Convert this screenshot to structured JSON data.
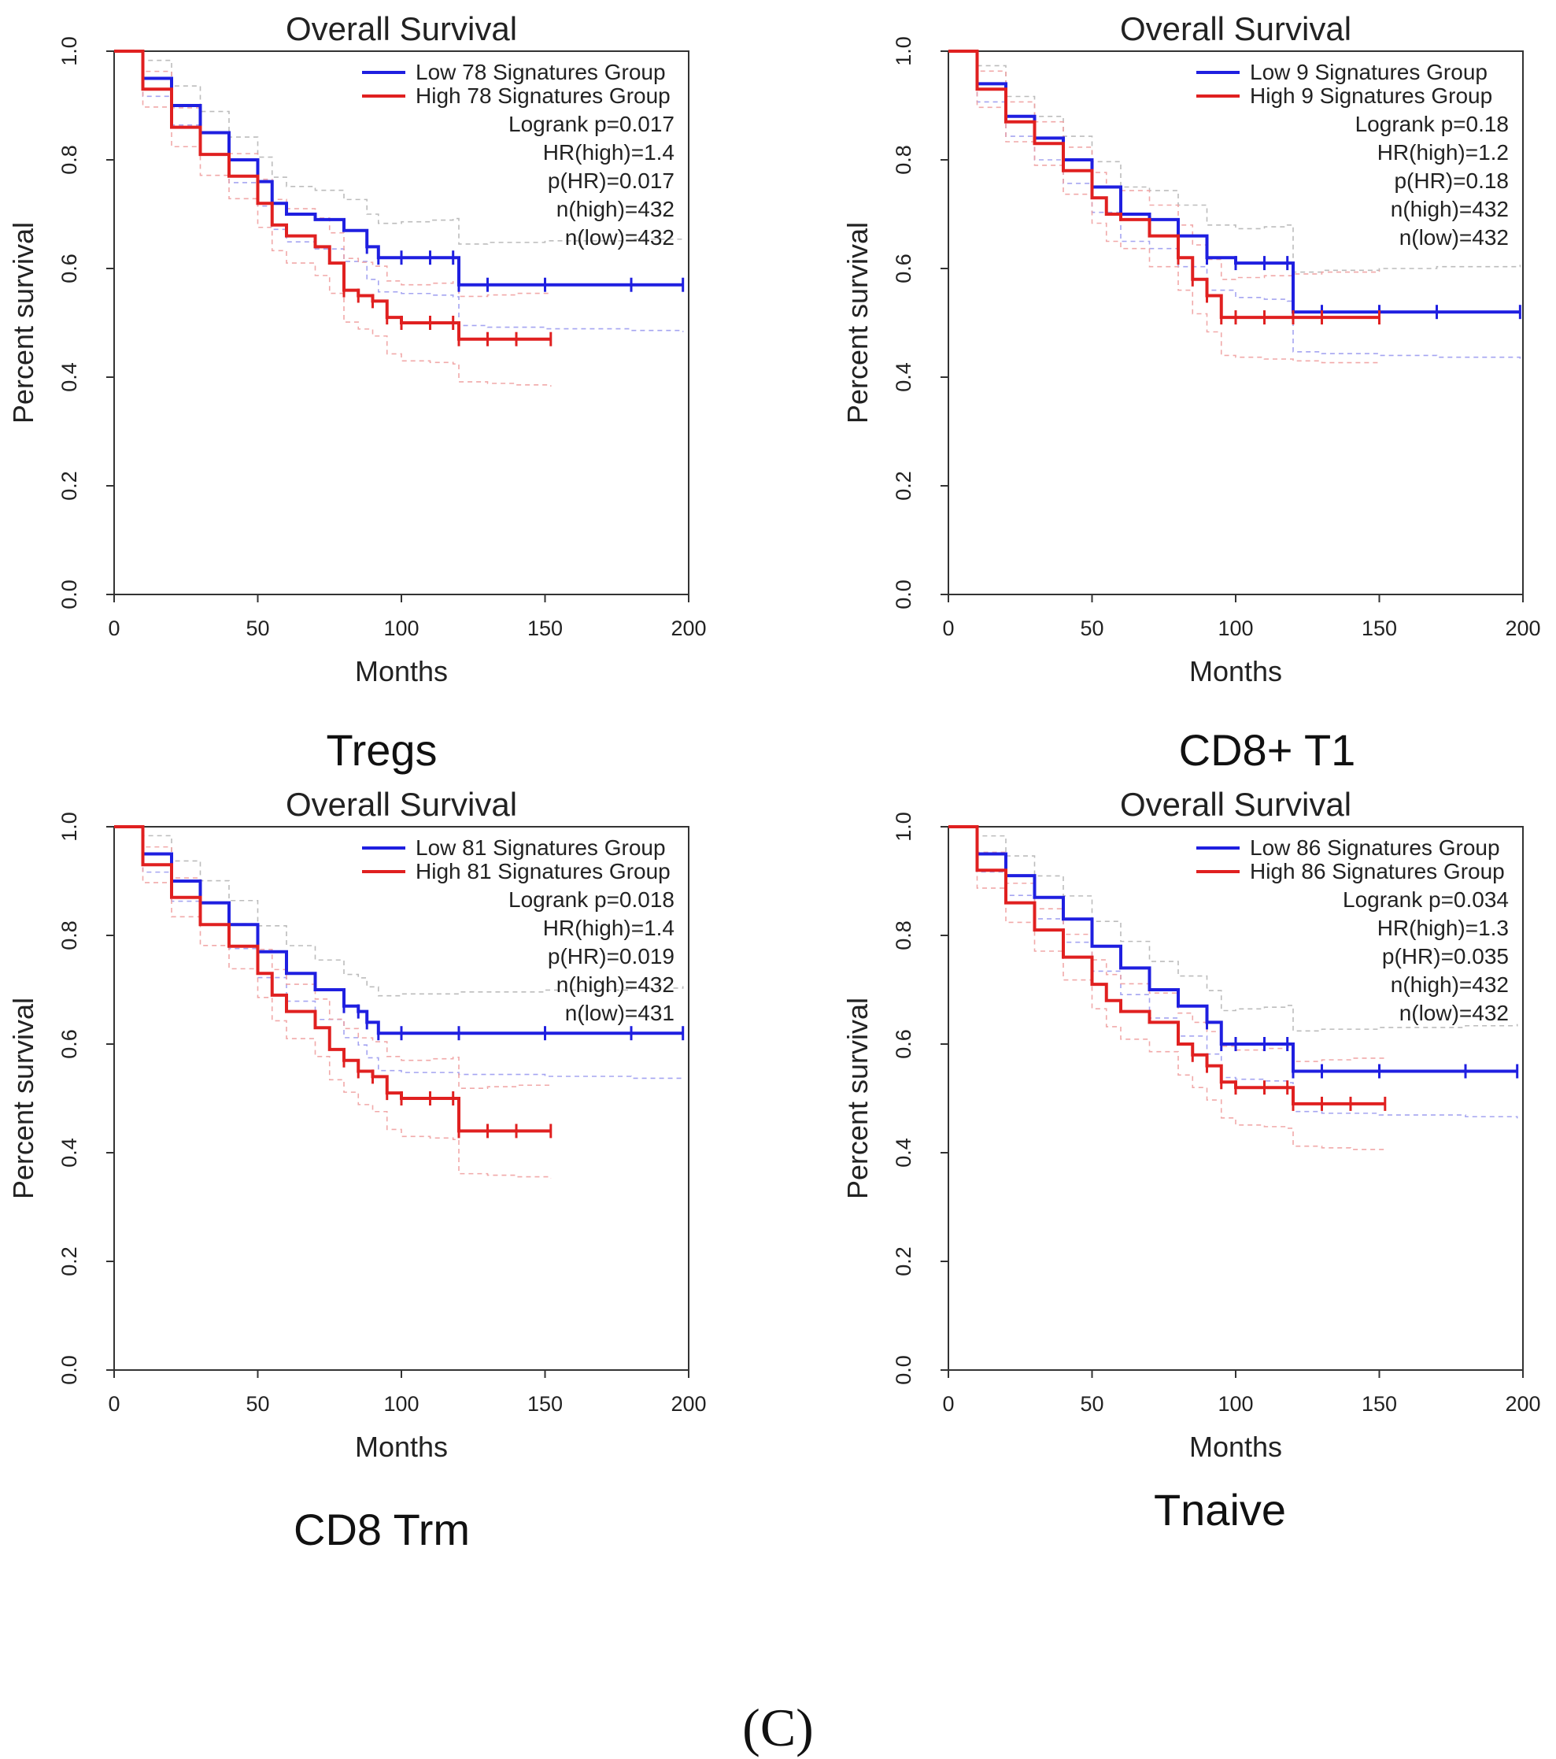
{
  "figure_label": "(C)",
  "colors": {
    "low": "#1f1fe0",
    "high": "#e02020",
    "low_ci": "#9b9bf0",
    "high_ci": "#f0a0a0",
    "gray_ci": "#b5b5b5"
  },
  "chart_data": [
    {
      "type": "line",
      "caption": "Tregs",
      "title": "Overall Survival",
      "xlabel": "Months",
      "ylabel": "Percent survival",
      "xlim": [
        0,
        200
      ],
      "ylim": [
        0,
        1.0
      ],
      "xticks": [
        "0",
        "50",
        "100",
        "150",
        "200"
      ],
      "yticks": [
        "0.0",
        "0.2",
        "0.4",
        "0.6",
        "0.8",
        "1.0"
      ],
      "legend": [
        "Low 78 Signatures Group",
        "High 78 Signatures Group"
      ],
      "stats": [
        "Logrank p=0.017",
        "HR(high)=1.4",
        "p(HR)=0.017",
        "n(high)=432",
        "n(low)=432"
      ],
      "series": [
        {
          "name": "Low 78 Signatures Group",
          "color": "#1f1fe0",
          "x": [
            0,
            10,
            20,
            30,
            40,
            50,
            55,
            60,
            70,
            80,
            88,
            92,
            100,
            110,
            118,
            120,
            130,
            150,
            180,
            198
          ],
          "y": [
            1.0,
            0.95,
            0.9,
            0.85,
            0.8,
            0.76,
            0.72,
            0.7,
            0.69,
            0.67,
            0.64,
            0.62,
            0.62,
            0.62,
            0.62,
            0.57,
            0.57,
            0.57,
            0.57,
            0.57
          ]
        },
        {
          "name": "High 78 Signatures Group",
          "color": "#e02020",
          "x": [
            0,
            10,
            20,
            30,
            40,
            50,
            55,
            60,
            70,
            75,
            80,
            85,
            90,
            95,
            100,
            110,
            118,
            120,
            130,
            140,
            152
          ],
          "y": [
            1.0,
            0.93,
            0.86,
            0.81,
            0.77,
            0.72,
            0.68,
            0.66,
            0.64,
            0.61,
            0.56,
            0.55,
            0.54,
            0.51,
            0.5,
            0.5,
            0.5,
            0.47,
            0.47,
            0.47,
            0.47
          ]
        }
      ]
    },
    {
      "type": "line",
      "caption": "CD8+ T1",
      "title": "Overall Survival",
      "xlabel": "Months",
      "ylabel": "Percent survival",
      "xlim": [
        0,
        200
      ],
      "ylim": [
        0,
        1.0
      ],
      "xticks": [
        "0",
        "50",
        "100",
        "150",
        "200"
      ],
      "yticks": [
        "0.0",
        "0.2",
        "0.4",
        "0.6",
        "0.8",
        "1.0"
      ],
      "legend": [
        "Low 9 Signatures Group",
        "High 9 Signatures Group"
      ],
      "stats": [
        "Logrank p=0.18",
        "HR(high)=1.2",
        "p(HR)=0.18",
        "n(high)=432",
        "n(low)=432"
      ],
      "series": [
        {
          "name": "Low 9 Signatures Group",
          "color": "#1f1fe0",
          "x": [
            0,
            10,
            20,
            30,
            40,
            50,
            60,
            70,
            80,
            90,
            100,
            110,
            118,
            120,
            130,
            150,
            170,
            199
          ],
          "y": [
            1.0,
            0.94,
            0.88,
            0.84,
            0.8,
            0.75,
            0.7,
            0.69,
            0.66,
            0.62,
            0.61,
            0.61,
            0.61,
            0.52,
            0.52,
            0.52,
            0.52,
            0.52
          ]
        },
        {
          "name": "High 9 Signatures Group",
          "color": "#e02020",
          "x": [
            0,
            10,
            20,
            30,
            40,
            50,
            55,
            60,
            70,
            80,
            85,
            90,
            95,
            100,
            110,
            120,
            130,
            150
          ],
          "y": [
            1.0,
            0.93,
            0.87,
            0.83,
            0.78,
            0.73,
            0.7,
            0.69,
            0.66,
            0.62,
            0.58,
            0.55,
            0.51,
            0.51,
            0.51,
            0.51,
            0.51,
            0.51
          ]
        }
      ]
    },
    {
      "type": "line",
      "caption": "CD8 Trm",
      "title": "Overall Survival",
      "xlabel": "Months",
      "ylabel": "Percent survival",
      "xlim": [
        0,
        200
      ],
      "ylim": [
        0,
        1.0
      ],
      "xticks": [
        "0",
        "50",
        "100",
        "150",
        "200"
      ],
      "yticks": [
        "0.0",
        "0.2",
        "0.4",
        "0.6",
        "0.8",
        "1.0"
      ],
      "legend": [
        "Low 81 Signatures Group",
        "High 81 Signatures Group"
      ],
      "stats": [
        "Logrank p=0.018",
        "HR(high)=1.4",
        "p(HR)=0.019",
        "n(high)=432",
        "n(low)=431"
      ],
      "series": [
        {
          "name": "Low 81 Signatures Group",
          "color": "#1f1fe0",
          "x": [
            0,
            10,
            20,
            30,
            40,
            50,
            60,
            70,
            80,
            85,
            88,
            92,
            100,
            120,
            150,
            180,
            198
          ],
          "y": [
            1.0,
            0.95,
            0.9,
            0.86,
            0.82,
            0.77,
            0.73,
            0.7,
            0.67,
            0.66,
            0.64,
            0.62,
            0.62,
            0.62,
            0.62,
            0.62,
            0.62
          ]
        },
        {
          "name": "High 81 Signatures Group",
          "color": "#e02020",
          "x": [
            0,
            10,
            20,
            30,
            40,
            50,
            55,
            60,
            70,
            75,
            80,
            85,
            90,
            95,
            100,
            110,
            118,
            120,
            130,
            140,
            152
          ],
          "y": [
            1.0,
            0.93,
            0.87,
            0.82,
            0.78,
            0.73,
            0.69,
            0.66,
            0.63,
            0.59,
            0.57,
            0.55,
            0.54,
            0.51,
            0.5,
            0.5,
            0.5,
            0.44,
            0.44,
            0.44,
            0.44
          ]
        }
      ]
    },
    {
      "type": "line",
      "caption": "Tnaive",
      "title": "Overall Survival",
      "xlabel": "Months",
      "ylabel": "Percent survival",
      "xlim": [
        0,
        200
      ],
      "ylim": [
        0,
        1.0
      ],
      "xticks": [
        "0",
        "50",
        "100",
        "150",
        "200"
      ],
      "yticks": [
        "0.0",
        "0.2",
        "0.4",
        "0.6",
        "0.8",
        "1.0"
      ],
      "legend": [
        "Low 86 Signatures Group",
        "High 86 Signatures Group"
      ],
      "stats": [
        "Logrank p=0.034",
        "HR(high)=1.3",
        "p(HR)=0.035",
        "n(high)=432",
        "n(low)=432"
      ],
      "series": [
        {
          "name": "Low 86 Signatures Group",
          "color": "#1f1fe0",
          "x": [
            0,
            10,
            20,
            30,
            40,
            50,
            60,
            70,
            80,
            90,
            95,
            100,
            110,
            118,
            120,
            130,
            150,
            180,
            198
          ],
          "y": [
            1.0,
            0.95,
            0.91,
            0.87,
            0.83,
            0.78,
            0.74,
            0.7,
            0.67,
            0.64,
            0.6,
            0.6,
            0.6,
            0.6,
            0.55,
            0.55,
            0.55,
            0.55,
            0.55
          ]
        },
        {
          "name": "High 86 Signatures Group",
          "color": "#e02020",
          "x": [
            0,
            10,
            20,
            30,
            40,
            50,
            55,
            60,
            70,
            80,
            85,
            90,
            95,
            100,
            110,
            118,
            120,
            130,
            140,
            152
          ],
          "y": [
            1.0,
            0.92,
            0.86,
            0.81,
            0.76,
            0.71,
            0.68,
            0.66,
            0.64,
            0.6,
            0.58,
            0.56,
            0.53,
            0.52,
            0.52,
            0.52,
            0.49,
            0.49,
            0.49,
            0.49
          ]
        }
      ]
    }
  ]
}
